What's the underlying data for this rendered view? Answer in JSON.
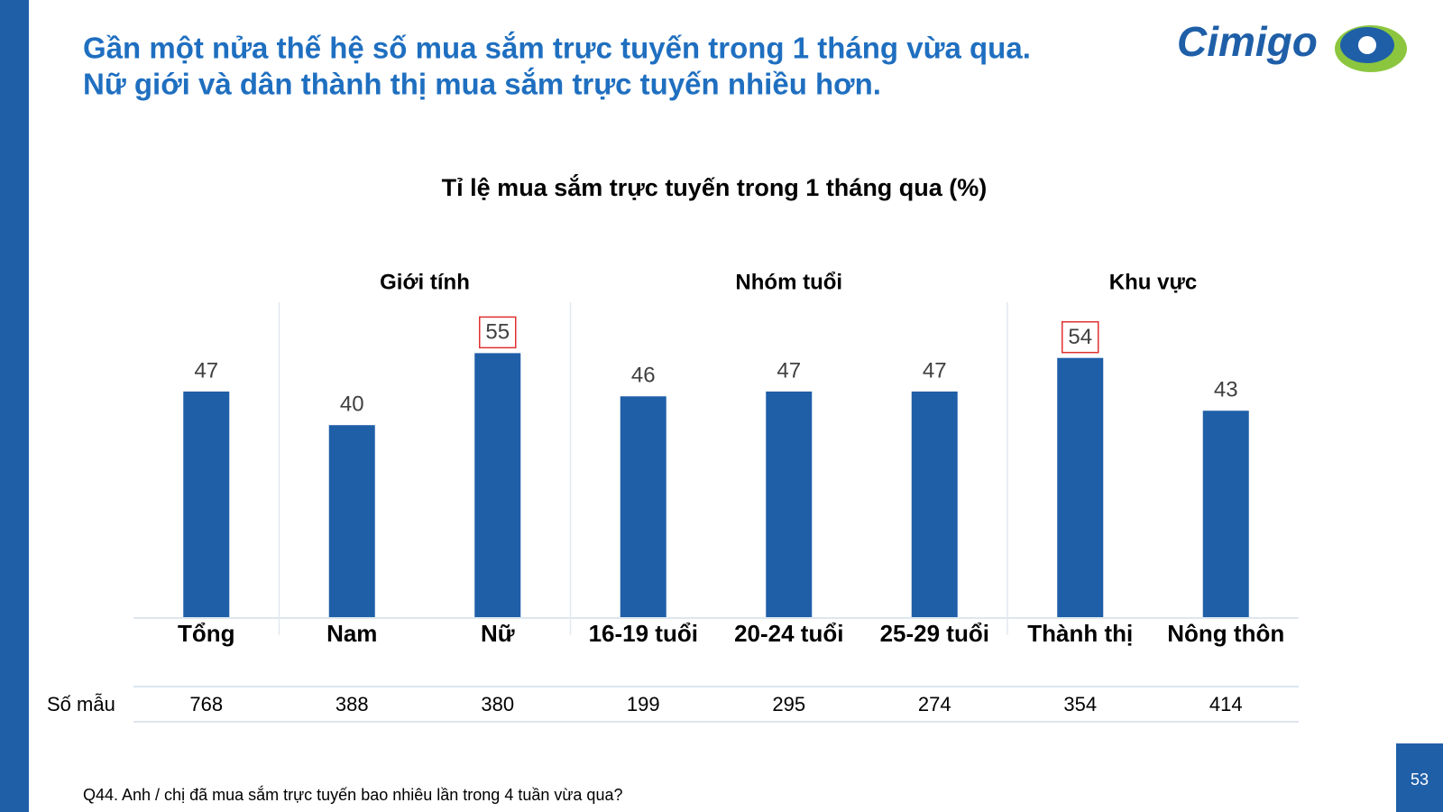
{
  "headline": [
    "Gần một nửa thế hệ số mua sắm trực tuyến trong 1 tháng vừa qua.",
    "Nữ giới và dân thành thị mua sắm trực tuyến nhiều hơn."
  ],
  "logo": "Cimigo",
  "page_number": "53",
  "footnote": "Q44. Anh / chị đã mua sắm trực tuyến bao nhiêu lần trong 4 tuần vừa qua?",
  "chart_data": {
    "type": "bar",
    "title": "Tỉ lệ mua sắm trực tuyến trong 1 tháng qua (%)",
    "categories": [
      "Tổng",
      "Nam",
      "Nữ",
      "16-19 tuổi",
      "20-24 tuổi",
      "25-29 tuổi",
      "Thành thị",
      "Nông thôn"
    ],
    "values": [
      47,
      40,
      55,
      46,
      47,
      47,
      54,
      43
    ],
    "color": "#1f5fa8",
    "highlight": [
      false,
      false,
      true,
      false,
      false,
      false,
      true,
      false
    ],
    "groups": [
      {
        "name": null,
        "span": 1
      },
      {
        "name": "Giới tính",
        "span": 2
      },
      {
        "name": "Nhóm tuổi",
        "span": 3
      },
      {
        "name": "Khu vực",
        "span": 2
      }
    ],
    "sample_label": "Số mẫu",
    "sample_sizes": [
      768,
      388,
      380,
      199,
      295,
      274,
      354,
      414
    ]
  }
}
